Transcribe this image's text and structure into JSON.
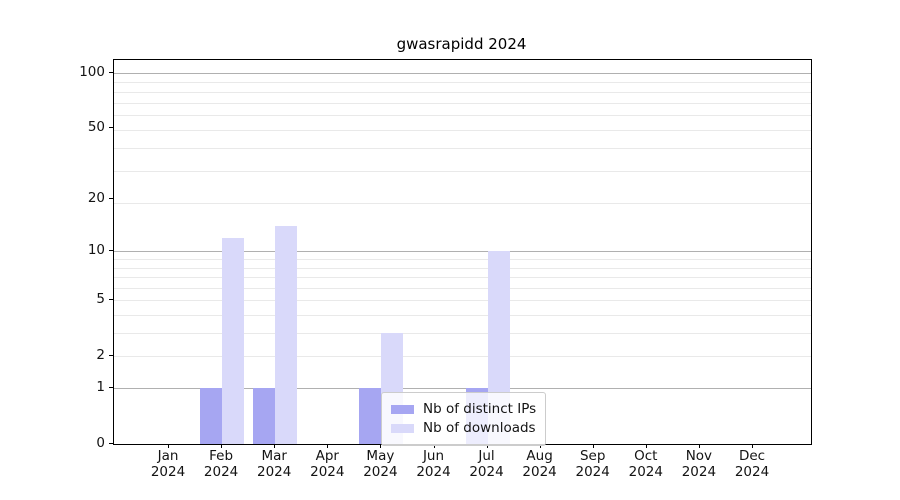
{
  "chart_data": {
    "type": "bar",
    "title": "gwasrapidd 2024",
    "categories": [
      {
        "label": "Jan",
        "sublabel": "2024"
      },
      {
        "label": "Feb",
        "sublabel": "2024"
      },
      {
        "label": "Mar",
        "sublabel": "2024"
      },
      {
        "label": "Apr",
        "sublabel": "2024"
      },
      {
        "label": "May",
        "sublabel": "2024"
      },
      {
        "label": "Jun",
        "sublabel": "2024"
      },
      {
        "label": "Jul",
        "sublabel": "2024"
      },
      {
        "label": "Aug",
        "sublabel": "2024"
      },
      {
        "label": "Sep",
        "sublabel": "2024"
      },
      {
        "label": "Oct",
        "sublabel": "2024"
      },
      {
        "label": "Nov",
        "sublabel": "2024"
      },
      {
        "label": "Dec",
        "sublabel": "2024"
      }
    ],
    "series": [
      {
        "name": "Nb of distinct IPs",
        "color": "#a6a6f2",
        "values": [
          0,
          1,
          1,
          0,
          1,
          0,
          1,
          0,
          0,
          0,
          0,
          0
        ]
      },
      {
        "name": "Nb of downloads",
        "color": "#d9d9fa",
        "values": [
          0,
          12,
          14,
          0,
          3,
          0,
          10,
          0,
          0,
          0,
          0,
          0
        ]
      }
    ],
    "yscale": "log1p",
    "yticks": [
      0,
      1,
      2,
      5,
      10,
      20,
      50,
      100
    ],
    "ylim": [
      0,
      118
    ],
    "grid": "horizontal",
    "legend_position": "lower-center"
  },
  "colors": {
    "grid_major": "#b0b0b0",
    "grid_minor": "#e9e9e9",
    "axis": "#000000"
  }
}
